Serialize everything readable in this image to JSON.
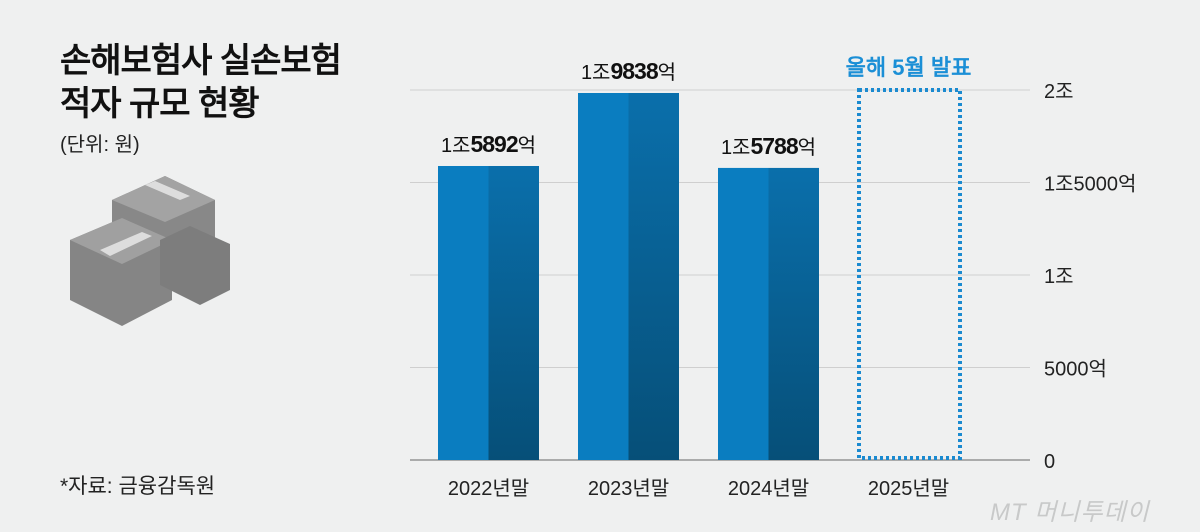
{
  "header": {
    "title_line1": "손해보험사 실손보험",
    "title_line2": "적자 규모 현황",
    "unit": "(단위: 원)"
  },
  "footer": {
    "source": "*자료: 금융감독원",
    "logo": "MT 머니투데이"
  },
  "colors": {
    "bar_light": "#0a7dc0",
    "bar_dark_top": "#0a6fab",
    "bar_dark_bottom": "#064f78",
    "pending": "#1a8ad0",
    "pending_label": "#1b8fd6"
  },
  "chart_data": {
    "type": "bar",
    "categories": [
      "2022년말",
      "2023년말",
      "2024년말",
      "2025년말"
    ],
    "values": [
      15892,
      19838,
      15788,
      null
    ],
    "value_unit": "억원",
    "data_labels": [
      {
        "prefix": "1조",
        "num": "5892",
        "suffix": "억"
      },
      {
        "prefix": "1조",
        "num": "9838",
        "suffix": "억"
      },
      {
        "prefix": "1조",
        "num": "5788",
        "suffix": "억"
      },
      null
    ],
    "pending_label": "올해 5월 발표",
    "ylim": [
      0,
      20000
    ],
    "yticks": [
      {
        "v": 0,
        "label": "0"
      },
      {
        "v": 5000,
        "label": "5000억"
      },
      {
        "v": 10000,
        "label": "1조"
      },
      {
        "v": 15000,
        "label": "1조5000억"
      },
      {
        "v": 20000,
        "label": "2조"
      }
    ],
    "axis_side": "right",
    "grid": true
  }
}
